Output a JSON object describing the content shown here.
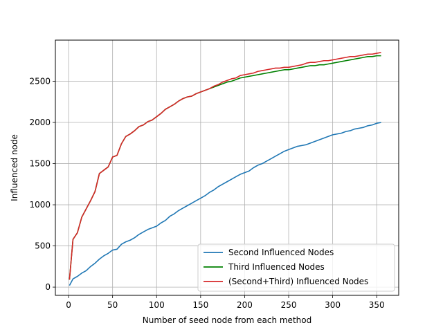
{
  "chart_data": {
    "type": "line",
    "xlabel": "Number of seed node from each method",
    "ylabel": "Influenced node",
    "xlim": [
      -15,
      375
    ],
    "ylim": [
      -100,
      3000
    ],
    "xticks": [
      0,
      50,
      100,
      150,
      200,
      250,
      300,
      350
    ],
    "yticks": [
      0,
      500,
      1000,
      1500,
      2000,
      2500
    ],
    "grid": true,
    "legend_position": "lower-right",
    "series": [
      {
        "name": "Second Influenced Nodes",
        "color": "#1f77b4",
        "x": [
          1,
          5,
          10,
          15,
          20,
          25,
          30,
          35,
          40,
          45,
          50,
          55,
          60,
          65,
          70,
          75,
          80,
          85,
          90,
          95,
          100,
          105,
          110,
          115,
          120,
          125,
          130,
          135,
          140,
          145,
          150,
          155,
          160,
          165,
          170,
          175,
          180,
          185,
          190,
          195,
          200,
          205,
          210,
          215,
          220,
          225,
          230,
          235,
          240,
          245,
          250,
          255,
          260,
          265,
          270,
          275,
          280,
          285,
          290,
          295,
          300,
          305,
          310,
          315,
          320,
          325,
          330,
          335,
          340,
          345,
          350,
          355
        ],
        "y": [
          20,
          100,
          130,
          170,
          200,
          250,
          290,
          340,
          380,
          410,
          450,
          460,
          520,
          550,
          570,
          600,
          640,
          670,
          700,
          720,
          740,
          780,
          810,
          860,
          890,
          930,
          960,
          990,
          1020,
          1050,
          1080,
          1110,
          1150,
          1180,
          1220,
          1250,
          1280,
          1310,
          1340,
          1370,
          1390,
          1410,
          1450,
          1480,
          1500,
          1530,
          1560,
          1590,
          1620,
          1650,
          1670,
          1690,
          1710,
          1720,
          1730,
          1750,
          1770,
          1790,
          1810,
          1830,
          1850,
          1860,
          1870,
          1890,
          1900,
          1920,
          1930,
          1940,
          1960,
          1970,
          1990,
          2000
        ]
      },
      {
        "name": "Third Influenced Nodes",
        "color": "#008000",
        "x": [
          1,
          5,
          10,
          15,
          20,
          25,
          30,
          35,
          40,
          45,
          50,
          55,
          60,
          65,
          70,
          75,
          80,
          85,
          90,
          95,
          100,
          105,
          110,
          115,
          120,
          125,
          130,
          135,
          140,
          145,
          150,
          155,
          160,
          165,
          170,
          175,
          180,
          185,
          190,
          195,
          200,
          205,
          210,
          215,
          220,
          225,
          230,
          235,
          240,
          245,
          250,
          255,
          260,
          265,
          270,
          275,
          280,
          285,
          290,
          295,
          300,
          305,
          310,
          315,
          320,
          325,
          330,
          335,
          340,
          345,
          350,
          355
        ],
        "y": [
          90,
          580,
          660,
          850,
          950,
          1050,
          1160,
          1380,
          1420,
          1460,
          1580,
          1600,
          1740,
          1830,
          1860,
          1900,
          1950,
          1970,
          2010,
          2030,
          2070,
          2110,
          2160,
          2190,
          2220,
          2260,
          2290,
          2310,
          2320,
          2350,
          2370,
          2390,
          2410,
          2430,
          2450,
          2470,
          2490,
          2500,
          2520,
          2540,
          2550,
          2560,
          2570,
          2580,
          2590,
          2600,
          2610,
          2620,
          2630,
          2640,
          2640,
          2650,
          2660,
          2670,
          2680,
          2690,
          2690,
          2700,
          2700,
          2710,
          2720,
          2730,
          2740,
          2750,
          2760,
          2770,
          2780,
          2790,
          2800,
          2800,
          2810,
          2810
        ]
      },
      {
        "name": "(Second+Third) Influenced Nodes",
        "color": "#d62728",
        "x": [
          1,
          5,
          10,
          15,
          20,
          25,
          30,
          35,
          40,
          45,
          50,
          55,
          60,
          65,
          70,
          75,
          80,
          85,
          90,
          95,
          100,
          105,
          110,
          115,
          120,
          125,
          130,
          135,
          140,
          145,
          150,
          155,
          160,
          165,
          170,
          175,
          180,
          185,
          190,
          195,
          200,
          205,
          210,
          215,
          220,
          225,
          230,
          235,
          240,
          245,
          250,
          255,
          260,
          265,
          270,
          275,
          280,
          285,
          290,
          295,
          300,
          305,
          310,
          315,
          320,
          325,
          330,
          335,
          340,
          345,
          350,
          355
        ],
        "y": [
          90,
          580,
          660,
          850,
          950,
          1050,
          1160,
          1380,
          1420,
          1460,
          1580,
          1600,
          1740,
          1830,
          1860,
          1900,
          1950,
          1970,
          2010,
          2030,
          2070,
          2110,
          2160,
          2190,
          2220,
          2260,
          2290,
          2310,
          2320,
          2350,
          2370,
          2390,
          2410,
          2440,
          2460,
          2490,
          2510,
          2530,
          2540,
          2570,
          2580,
          2590,
          2600,
          2620,
          2630,
          2640,
          2650,
          2660,
          2660,
          2670,
          2670,
          2680,
          2690,
          2700,
          2720,
          2730,
          2730,
          2740,
          2750,
          2750,
          2760,
          2770,
          2780,
          2790,
          2800,
          2800,
          2810,
          2820,
          2830,
          2830,
          2840,
          2850
        ]
      }
    ]
  }
}
